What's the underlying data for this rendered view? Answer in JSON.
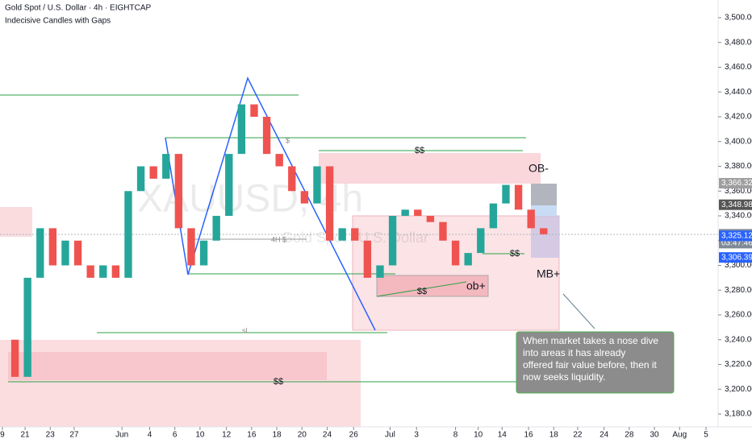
{
  "header": {
    "title": "Gold Spot / U.S. Dollar · 4h · EIGHTCAP",
    "indicator": "Indecisive Candles with Gaps"
  },
  "watermark": {
    "symbol": "XAUUSD, 4h",
    "name": "Gold Spot / U.S. Dollar"
  },
  "chart_data": {
    "type": "candlestick",
    "series": [
      {
        "name": "XAUUSD",
        "up_color": "#26a69a",
        "down_color": "#ef5350",
        "values": [
          3240,
          3210,
          3290,
          3330,
          3300,
          3320,
          3300,
          3290,
          3300,
          3290,
          3360,
          3380,
          3370,
          3390,
          3330,
          3300,
          3320,
          3340,
          3390,
          3430,
          3420,
          3390,
          3380,
          3360,
          3350,
          3380,
          3320,
          3330,
          3320,
          3290,
          3300,
          3340,
          3345,
          3340,
          3335,
          3320,
          3300,
          3310,
          3330,
          3350,
          3365,
          3345,
          3330,
          3325.12
        ]
      }
    ],
    "x": [
      0,
      1,
      2,
      3,
      4,
      5,
      6,
      7,
      8,
      9,
      10,
      11,
      12,
      13,
      14,
      15,
      16,
      17,
      18,
      19,
      20,
      21,
      22,
      23,
      24,
      25,
      26,
      27,
      28,
      29,
      30,
      31,
      32,
      33,
      34,
      35,
      36,
      37,
      38,
      39,
      40,
      41,
      42,
      43
    ],
    "xlim": [
      -0.19,
      56.86
    ],
    "ylim": [
      3169.6,
      3514.3
    ],
    "xticks": [
      {
        "value": 0,
        "label": "9"
      },
      {
        "value": 1.8,
        "label": "21"
      },
      {
        "value": 3.8,
        "label": "23"
      },
      {
        "value": 5.7,
        "label": "27"
      },
      {
        "value": 9.5,
        "label": "Jun"
      },
      {
        "value": 11.7,
        "label": "4"
      },
      {
        "value": 13.7,
        "label": "6"
      },
      {
        "value": 15.7,
        "label": "10"
      },
      {
        "value": 17.8,
        "label": "12"
      },
      {
        "value": 19.8,
        "label": "16"
      },
      {
        "value": 21.8,
        "label": "18"
      },
      {
        "value": 23.8,
        "label": "20"
      },
      {
        "value": 25.8,
        "label": "24"
      },
      {
        "value": 27.9,
        "label": "26"
      },
      {
        "value": 30.8,
        "label": "Jul"
      },
      {
        "value": 32.9,
        "label": "3"
      },
      {
        "value": 36,
        "label": "8"
      },
      {
        "value": 37.8,
        "label": "10"
      },
      {
        "value": 39.7,
        "label": "14"
      },
      {
        "value": 41.8,
        "label": "16"
      },
      {
        "value": 43.8,
        "label": "18"
      },
      {
        "value": 45.7,
        "label": "22"
      },
      {
        "value": 47.8,
        "label": "24"
      },
      {
        "value": 49.8,
        "label": "28"
      },
      {
        "value": 51.8,
        "label": "30"
      },
      {
        "value": 53.8,
        "label": "Aug"
      },
      {
        "value": 55.9,
        "label": "5"
      }
    ],
    "yticks": [
      {
        "value": 3180,
        "label": "3,180.00"
      },
      {
        "value": 3200,
        "label": "3,200.00"
      },
      {
        "value": 3220,
        "label": "3,220.00"
      },
      {
        "value": 3240,
        "label": "3,240.00"
      },
      {
        "value": 3260,
        "label": "3,260.00"
      },
      {
        "value": 3280,
        "label": "3,280.00"
      },
      {
        "value": 3300,
        "label": "3,300.00"
      },
      {
        "value": 3320,
        "label": "3,320.00"
      },
      {
        "value": 3340,
        "label": "3,340.00"
      },
      {
        "value": 3360,
        "label": "3,360.00"
      },
      {
        "value": 3380,
        "label": "3,380.00"
      },
      {
        "value": 3400,
        "label": "3,400.00"
      },
      {
        "value": 3420,
        "label": "3,420.00"
      },
      {
        "value": 3440,
        "label": "3,440.00"
      },
      {
        "value": 3460,
        "label": "3,460.00"
      },
      {
        "value": 3480,
        "label": "3,480.00"
      },
      {
        "value": 3500,
        "label": "3,500.00"
      }
    ],
    "price_tags": [
      {
        "value": 3366.32,
        "label": "3,366.32",
        "color": "#9e9e9e"
      },
      {
        "value": 3348.98,
        "label": "3,348.98",
        "color": "#555555"
      },
      {
        "value": 3325.12,
        "label": "3,325.12",
        "sub": "03:47:46",
        "color": "#7e8a96"
      },
      {
        "value": 3325.12,
        "label": "3,325.12",
        "color": "#2962ff"
      },
      {
        "value": 3306.39,
        "label": "3,306.39",
        "color": "#2962ff"
      }
    ]
  },
  "annotations": {
    "liq_top": "$$",
    "liq_bottom": "$$",
    "liq_ob": "$$",
    "liq_right": "$$",
    "ob_minus": "OB-",
    "ob_plus": "ob+",
    "mb_plus": "MB+",
    "h4": "4H $",
    "sl": "sl",
    "dollar": "$",
    "note": [
      "When market takes a nose dive",
      "into areas it has already",
      "offered fair value before, then it",
      "now seeks liquidity."
    ]
  }
}
